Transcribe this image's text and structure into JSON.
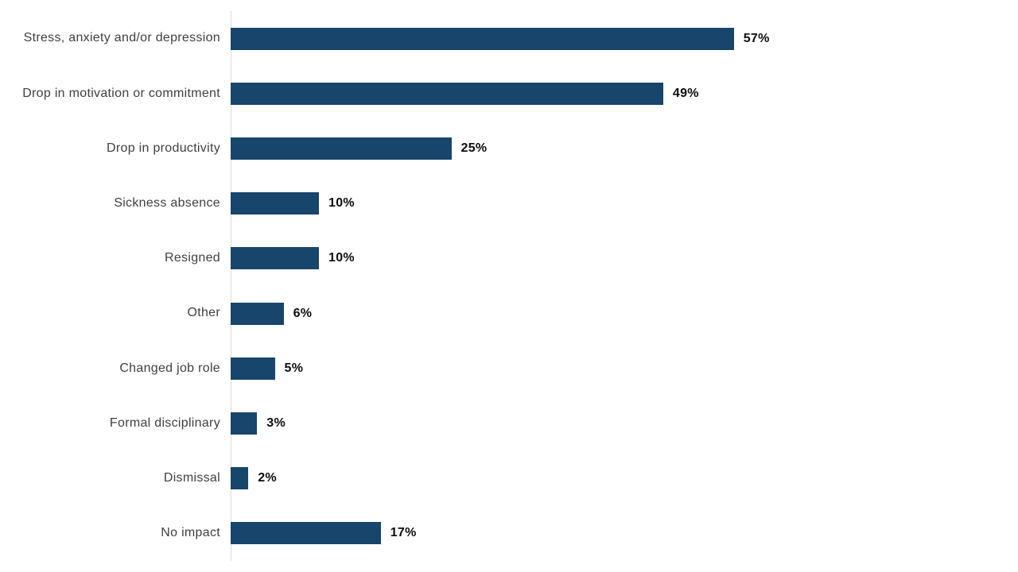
{
  "chart_data": {
    "type": "bar",
    "orientation": "horizontal",
    "title": "",
    "xlabel": "",
    "ylabel": "",
    "categories": [
      "Stress, anxiety and/or depression",
      "Drop in motivation or commitment",
      "Drop in productivity",
      "Sickness absence",
      "Resigned",
      "Other",
      "Changed job role",
      "Formal disciplinary",
      "Dismissal",
      "No impact"
    ],
    "values": [
      57,
      49,
      25,
      10,
      10,
      6,
      5,
      3,
      2,
      17
    ],
    "value_labels": [
      "57%",
      "49%",
      "25%",
      "10%",
      "10%",
      "6%",
      "5%",
      "3%",
      "2%",
      "17%"
    ],
    "unit": "%",
    "xlim": [
      0,
      89
    ],
    "grid": false,
    "legend": "none"
  },
  "colors": {
    "bar": "#17456B",
    "axis_line": "#D9D9D9",
    "category_label": "#404040",
    "value_label": "#0D0D0D",
    "background": "#FFFFFF"
  }
}
